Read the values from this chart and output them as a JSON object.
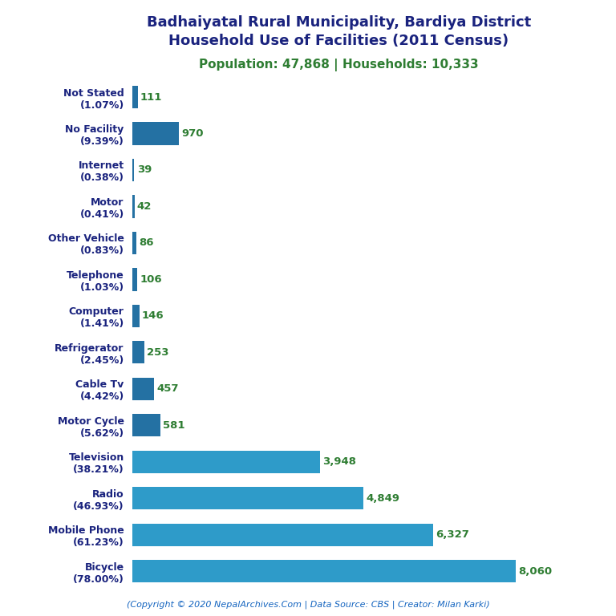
{
  "title_line1": "Badhaiyatal Rural Municipality, Bardiya District",
  "title_line2": "Household Use of Facilities (2011 Census)",
  "subtitle": "Population: 47,868 | Households: 10,333",
  "footer": "(Copyright © 2020 NepalArchives.Com | Data Source: CBS | Creator: Milan Karki)",
  "categories": [
    "Not Stated\n(1.07%)",
    "No Facility\n(9.39%)",
    "Internet\n(0.38%)",
    "Motor\n(0.41%)",
    "Other Vehicle\n(0.83%)",
    "Telephone\n(1.03%)",
    "Computer\n(1.41%)",
    "Refrigerator\n(2.45%)",
    "Cable Tv\n(4.42%)",
    "Motor Cycle\n(5.62%)",
    "Television\n(38.21%)",
    "Radio\n(46.93%)",
    "Mobile Phone\n(61.23%)",
    "Bicycle\n(78.00%)"
  ],
  "values": [
    111,
    970,
    39,
    42,
    86,
    106,
    146,
    253,
    457,
    581,
    3948,
    4849,
    6327,
    8060
  ],
  "value_labels": [
    "111",
    "970",
    "39",
    "42",
    "86",
    "106",
    "146",
    "253",
    "457",
    "581",
    "3,948",
    "4,849",
    "6,327",
    "8,060"
  ],
  "bar_color_small": "#2471a3",
  "bar_color_large": "#2e9bc9",
  "title_color": "#1a237e",
  "subtitle_color": "#2e7d32",
  "label_color": "#2e7d32",
  "footer_color": "#1565c0",
  "background_color": "#ffffff",
  "xlim_max": 9000
}
